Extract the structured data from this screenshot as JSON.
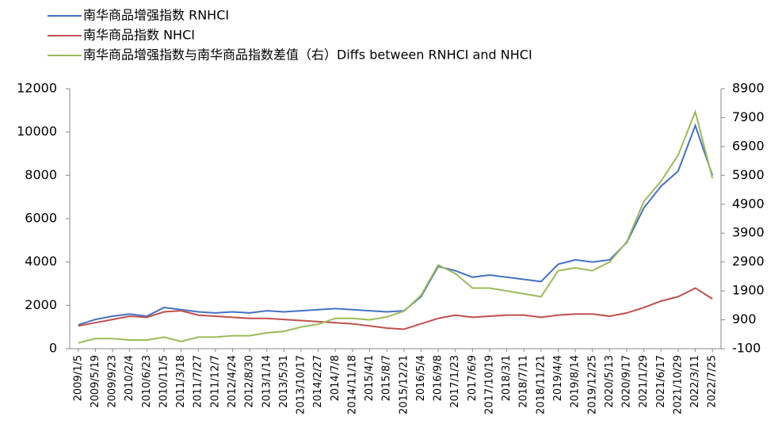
{
  "chart_data": {
    "type": "line",
    "categories": [
      "2009/1/5",
      "2009/5/19",
      "2009/9/23",
      "2010/2/4",
      "2010/6/23",
      "2010/11/5",
      "2011/3/18",
      "2011/7/27",
      "2011/12/7",
      "2012/4/24",
      "2012/8/30",
      "2013/1/14",
      "2013/5/31",
      "2013/10/17",
      "2014/2/27",
      "2014/7/8",
      "2014/11/18",
      "2015/4/1",
      "2015/8/7",
      "2015/12/21",
      "2016/5/4",
      "2016/9/8",
      "2017/1/23",
      "2017/6/9",
      "2017/10/19",
      "2018/3/1",
      "2018/7/11",
      "2018/11/21",
      "2019/4/4",
      "2019/8/14",
      "2019/12/25",
      "2020/5/13",
      "2020/9/17",
      "2021/1/29",
      "2021/6/17",
      "2021/10/29",
      "2022/3/11",
      "2022/7/25"
    ],
    "series": [
      {
        "name": "南华商品增强指数 RNHCI",
        "color": "#4472c4",
        "values": [
          1100,
          1350,
          1500,
          1600,
          1500,
          1900,
          1800,
          1700,
          1650,
          1700,
          1650,
          1750,
          1700,
          1750,
          1800,
          1850,
          1800,
          1750,
          1700,
          1750,
          2400,
          3800,
          3600,
          3300,
          3400,
          3300,
          3200,
          3100,
          3900,
          4100,
          4000,
          4100,
          4900,
          6500,
          7500,
          8200,
          10300,
          8000
        ]
      },
      {
        "name": "南华商品指数 NHCI",
        "color": "#c0504d",
        "values": [
          1050,
          1200,
          1350,
          1500,
          1450,
          1700,
          1750,
          1550,
          1500,
          1450,
          1400,
          1400,
          1350,
          1300,
          1250,
          1200,
          1150,
          1050,
          950,
          900,
          1150,
          1400,
          1550,
          1450,
          1500,
          1550,
          1550,
          1450,
          1550,
          1600,
          1600,
          1500,
          1650,
          1900,
          2200,
          2400,
          2800,
          2300
        ]
      },
      {
        "name": "南华商品增强指数与南华商品指数差值（右）Diffs between RNHCI and NHCI",
        "color": "#9bbb59",
        "axis": "y2",
        "values": [
          100,
          250,
          250,
          200,
          200,
          300,
          150,
          300,
          300,
          350,
          350,
          450,
          500,
          650,
          750,
          950,
          950,
          900,
          1000,
          1200,
          1750,
          2800,
          2500,
          2000,
          2000,
          1900,
          1800,
          1700,
          2600,
          2700,
          2600,
          2900,
          3600,
          5000,
          5700,
          6600,
          8100,
          5800
        ]
      }
    ],
    "ylim": [
      0,
      12000
    ],
    "yticks": [
      0,
      2000,
      4000,
      6000,
      8000,
      10000,
      12000
    ],
    "y2lim": [
      -100,
      8900
    ],
    "y2ticks": [
      -100,
      900,
      1900,
      2900,
      3900,
      4900,
      5900,
      6900,
      7900,
      8900
    ]
  }
}
